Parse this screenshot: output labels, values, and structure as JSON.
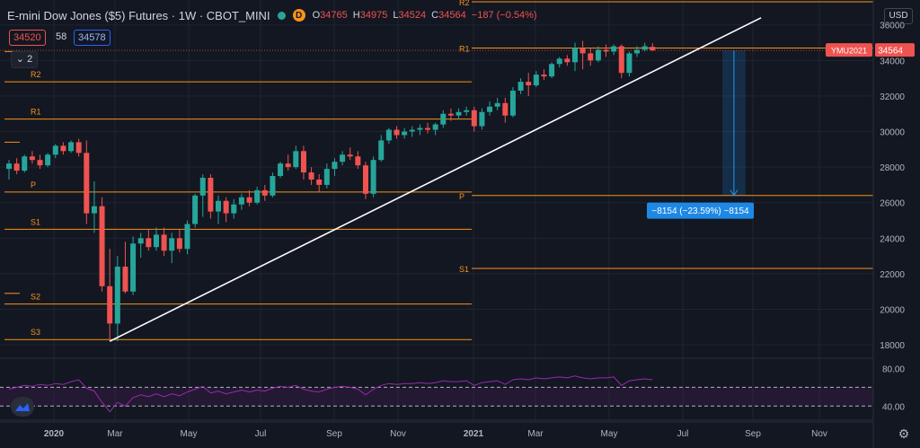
{
  "header": {
    "title": "E-mini Dow Jones ($5) Futures · 1W · CBOT_MINI",
    "logo_letter": "D",
    "open_label": "O",
    "open": "34765",
    "high_label": "H",
    "high": "34975",
    "low_label": "L",
    "low": "34524",
    "close_label": "C",
    "close": "34564",
    "change": "−187 (−0.54%)"
  },
  "trade": {
    "sell": "34520",
    "spread": "58",
    "buy": "34578"
  },
  "indicators_toggle": "2",
  "currency": "USD",
  "colors": {
    "background": "#131722",
    "up": "#26a69a",
    "down": "#ef5350",
    "pivot_line": "#f7931a",
    "pivot_label": "#f7931a",
    "trendline": "#ffffff",
    "rsi": "#9c27b0",
    "measure": "#2196f3",
    "grid": "#1f2430"
  },
  "chart_data": {
    "type": "candlestick",
    "symbol_tag": "YMU2021",
    "last_price": 34564,
    "y_ticks": [
      18000,
      20000,
      22000,
      24000,
      26000,
      28000,
      30000,
      32000,
      34000,
      36000
    ],
    "ylim": [
      17300,
      37400
    ],
    "x_ticks": [
      "2020",
      "Mar",
      "May",
      "Jul",
      "Sep",
      "Nov",
      "2021",
      "Mar",
      "May",
      "Jul",
      "Sep",
      "Nov"
    ],
    "candles": [
      {
        "o": 27900,
        "h": 28400,
        "l": 27300,
        "c": 28200
      },
      {
        "o": 28200,
        "h": 28500,
        "l": 27600,
        "c": 27800
      },
      {
        "o": 27800,
        "h": 28700,
        "l": 27700,
        "c": 28600
      },
      {
        "o": 28600,
        "h": 28900,
        "l": 28200,
        "c": 28400
      },
      {
        "o": 28400,
        "h": 28700,
        "l": 27900,
        "c": 28100
      },
      {
        "o": 28100,
        "h": 28800,
        "l": 28000,
        "c": 28700
      },
      {
        "o": 28700,
        "h": 29300,
        "l": 28500,
        "c": 29200
      },
      {
        "o": 29200,
        "h": 29400,
        "l": 28700,
        "c": 28900
      },
      {
        "o": 28900,
        "h": 29500,
        "l": 28800,
        "c": 29400
      },
      {
        "o": 29400,
        "h": 29600,
        "l": 28600,
        "c": 28800
      },
      {
        "o": 28800,
        "h": 29500,
        "l": 24800,
        "c": 25400
      },
      {
        "o": 25400,
        "h": 27200,
        "l": 24300,
        "c": 25800
      },
      {
        "o": 25800,
        "h": 26300,
        "l": 21000,
        "c": 21300
      },
      {
        "o": 21300,
        "h": 23400,
        "l": 18200,
        "c": 19200
      },
      {
        "o": 19200,
        "h": 23000,
        "l": 18200,
        "c": 22400
      },
      {
        "o": 22400,
        "h": 23800,
        "l": 20900,
        "c": 21000
      },
      {
        "o": 21000,
        "h": 24100,
        "l": 20800,
        "c": 23700
      },
      {
        "o": 23700,
        "h": 24300,
        "l": 22900,
        "c": 24000
      },
      {
        "o": 24000,
        "h": 24500,
        "l": 23300,
        "c": 23500
      },
      {
        "o": 23500,
        "h": 24600,
        "l": 23300,
        "c": 24200
      },
      {
        "o": 24200,
        "h": 24600,
        "l": 23000,
        "c": 23300
      },
      {
        "o": 23300,
        "h": 24300,
        "l": 22600,
        "c": 24000
      },
      {
        "o": 24000,
        "h": 24500,
        "l": 23200,
        "c": 23400
      },
      {
        "o": 23400,
        "h": 25000,
        "l": 23100,
        "c": 24800
      },
      {
        "o": 24800,
        "h": 26500,
        "l": 24600,
        "c": 26400
      },
      {
        "o": 26400,
        "h": 27600,
        "l": 25200,
        "c": 27400
      },
      {
        "o": 27400,
        "h": 27600,
        "l": 25100,
        "c": 25500
      },
      {
        "o": 25500,
        "h": 26400,
        "l": 24800,
        "c": 26100
      },
      {
        "o": 26100,
        "h": 26300,
        "l": 24900,
        "c": 25400
      },
      {
        "o": 25400,
        "h": 26200,
        "l": 25100,
        "c": 25900
      },
      {
        "o": 25900,
        "h": 26500,
        "l": 25600,
        "c": 26300
      },
      {
        "o": 26300,
        "h": 26700,
        "l": 25800,
        "c": 26000
      },
      {
        "o": 26000,
        "h": 26900,
        "l": 25900,
        "c": 26700
      },
      {
        "o": 26700,
        "h": 27000,
        "l": 26100,
        "c": 26400
      },
      {
        "o": 26400,
        "h": 27700,
        "l": 26300,
        "c": 27500
      },
      {
        "o": 27500,
        "h": 28300,
        "l": 27400,
        "c": 28200
      },
      {
        "o": 28200,
        "h": 28700,
        "l": 27800,
        "c": 28000
      },
      {
        "o": 28000,
        "h": 29200,
        "l": 27900,
        "c": 28900
      },
      {
        "o": 28900,
        "h": 29200,
        "l": 27300,
        "c": 27700
      },
      {
        "o": 27700,
        "h": 28000,
        "l": 27000,
        "c": 27300
      },
      {
        "o": 27300,
        "h": 27600,
        "l": 26600,
        "c": 27000
      },
      {
        "o": 27000,
        "h": 28200,
        "l": 26800,
        "c": 27900
      },
      {
        "o": 27900,
        "h": 28500,
        "l": 27500,
        "c": 28300
      },
      {
        "o": 28300,
        "h": 28900,
        "l": 28100,
        "c": 28700
      },
      {
        "o": 28700,
        "h": 29100,
        "l": 28400,
        "c": 28600
      },
      {
        "o": 28600,
        "h": 28900,
        "l": 27900,
        "c": 28100
      },
      {
        "o": 28100,
        "h": 28300,
        "l": 26200,
        "c": 26500
      },
      {
        "o": 26500,
        "h": 28600,
        "l": 26300,
        "c": 28400
      },
      {
        "o": 28400,
        "h": 29800,
        "l": 28300,
        "c": 29500
      },
      {
        "o": 29500,
        "h": 30200,
        "l": 29300,
        "c": 30100
      },
      {
        "o": 30100,
        "h": 30300,
        "l": 29600,
        "c": 29800
      },
      {
        "o": 29800,
        "h": 30200,
        "l": 29600,
        "c": 30000
      },
      {
        "o": 30000,
        "h": 30300,
        "l": 29700,
        "c": 30100
      },
      {
        "o": 30100,
        "h": 30400,
        "l": 29800,
        "c": 30200
      },
      {
        "o": 30200,
        "h": 30500,
        "l": 29900,
        "c": 30100
      },
      {
        "o": 30100,
        "h": 30500,
        "l": 29800,
        "c": 30400
      },
      {
        "o": 30400,
        "h": 31200,
        "l": 30200,
        "c": 31000
      },
      {
        "o": 31000,
        "h": 31300,
        "l": 30600,
        "c": 30900
      },
      {
        "o": 30900,
        "h": 31300,
        "l": 30700,
        "c": 31100
      },
      {
        "o": 31100,
        "h": 31400,
        "l": 30900,
        "c": 31200
      },
      {
        "o": 31200,
        "h": 31400,
        "l": 30000,
        "c": 30300
      },
      {
        "o": 30300,
        "h": 31300,
        "l": 30100,
        "c": 31100
      },
      {
        "o": 31100,
        "h": 31700,
        "l": 30900,
        "c": 31400
      },
      {
        "o": 31400,
        "h": 31900,
        "l": 31200,
        "c": 31600
      },
      {
        "o": 31600,
        "h": 31900,
        "l": 30500,
        "c": 30900
      },
      {
        "o": 30900,
        "h": 32500,
        "l": 30800,
        "c": 32300
      },
      {
        "o": 32300,
        "h": 33000,
        "l": 32100,
        "c": 32800
      },
      {
        "o": 32800,
        "h": 33300,
        "l": 32000,
        "c": 32600
      },
      {
        "o": 32600,
        "h": 33400,
        "l": 32500,
        "c": 33200
      },
      {
        "o": 33200,
        "h": 33500,
        "l": 32900,
        "c": 33100
      },
      {
        "o": 33100,
        "h": 33900,
        "l": 33000,
        "c": 33800
      },
      {
        "o": 33800,
        "h": 34200,
        "l": 33600,
        "c": 34100
      },
      {
        "o": 34100,
        "h": 34300,
        "l": 33700,
        "c": 33900
      },
      {
        "o": 33900,
        "h": 35000,
        "l": 33400,
        "c": 34700
      },
      {
        "o": 34700,
        "h": 35100,
        "l": 33500,
        "c": 34400
      },
      {
        "o": 34400,
        "h": 34700,
        "l": 33700,
        "c": 34000
      },
      {
        "o": 34000,
        "h": 34800,
        "l": 33900,
        "c": 34600
      },
      {
        "o": 34600,
        "h": 34900,
        "l": 34200,
        "c": 34500
      },
      {
        "o": 34500,
        "h": 34900,
        "l": 34300,
        "c": 34800
      },
      {
        "o": 34800,
        "h": 34900,
        "l": 33000,
        "c": 33300
      },
      {
        "o": 33300,
        "h": 34500,
        "l": 33100,
        "c": 34400
      },
      {
        "o": 34400,
        "h": 34800,
        "l": 34200,
        "c": 34600
      },
      {
        "o": 34600,
        "h": 35000,
        "l": 34500,
        "c": 34800
      },
      {
        "o": 34765,
        "h": 34975,
        "l": 34524,
        "c": 34564
      }
    ],
    "pivots_2020": [
      {
        "label": "R2",
        "value": 32800
      },
      {
        "label": "R1",
        "value": 30700
      },
      {
        "label": "P",
        "value": 26600
      },
      {
        "label": "S1",
        "value": 24500
      },
      {
        "label": "S2",
        "value": 20300
      },
      {
        "label": "S3",
        "value": 18300
      }
    ],
    "pivots_2021": [
      {
        "label": "R2",
        "value": 37300
      },
      {
        "label": "R1",
        "value": 34700
      },
      {
        "label": "P",
        "value": 26400
      },
      {
        "label": "S1",
        "value": 22300
      }
    ],
    "left_extra_levels": [
      34500,
      29400,
      20900
    ],
    "trendline": {
      "from": {
        "bar": 13,
        "price": 18200
      },
      "to": {
        "bar": 97,
        "price": 36400
      }
    },
    "measure": {
      "from_bar": 92,
      "to_bar": 95,
      "from_price": 34564,
      "to_price": 26410,
      "label": "−8154 (−23.59%) −8154"
    },
    "rsi": {
      "ticks": [
        80.0,
        40.0
      ],
      "upper_band": 60,
      "lower_band": 40,
      "ylim": [
        25,
        90
      ],
      "values": [
        58,
        60,
        62,
        61,
        63,
        62,
        64,
        63,
        66,
        68,
        59,
        56,
        44,
        34,
        44,
        40,
        49,
        52,
        50,
        53,
        50,
        53,
        51,
        55,
        58,
        61,
        54,
        56,
        53,
        55,
        57,
        55,
        57,
        56,
        59,
        61,
        60,
        62,
        58,
        56,
        55,
        58,
        60,
        61,
        60,
        58,
        52,
        58,
        62,
        64,
        63,
        64,
        64,
        65,
        64,
        65,
        67,
        66,
        66,
        67,
        62,
        65,
        66,
        67,
        63,
        68,
        69,
        68,
        70,
        69,
        70,
        71,
        70,
        72,
        70,
        69,
        70,
        70,
        71,
        62,
        67,
        68,
        69,
        68
      ]
    }
  }
}
